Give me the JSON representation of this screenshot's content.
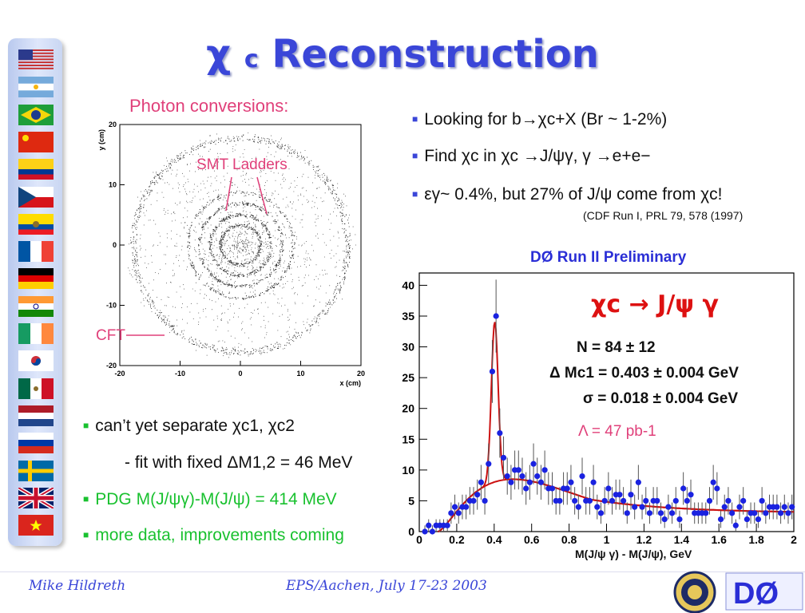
{
  "title": {
    "symbol": "χ",
    "sub": "c",
    "text": "Reconstruction"
  },
  "photon_label": "Photon conversions:",
  "annotations": {
    "smt": "SMT Ladders",
    "cft": "CFT"
  },
  "bullets_right": [
    "Looking for b→χc+X   (Br ~ 1-2%)",
    "Find χc in χc →J/ψγ,  γ →e+e−",
    "εγ~ 0.4%, but 27% of J/ψ come from χc!"
  ],
  "reference": "(CDF Run I, PRL 79, 578 (1997)",
  "bullets_left": {
    "b1": "can’t yet separate χc1, χc2",
    "b1_sub": "- fit with fixed ΔM1,2 = 46 MeV",
    "b2": "PDG M(J/ψγ)-M(J/ψ) = 414 MeV",
    "b3": "more data, improvements coming"
  },
  "footer": {
    "author": "Mike Hildreth",
    "conference": "EPS/Aachen, July 17-23 2003"
  },
  "flags": [
    "usa-flag",
    "argentina-flag",
    "brazil-flag",
    "china-flag",
    "colombia-flag",
    "czech-flag",
    "ecuador-flag",
    "france-flag",
    "germany-flag",
    "india-flag",
    "ireland-flag",
    "korea-flag",
    "mexico-flag",
    "netherlands-flag",
    "russia-flag",
    "sweden-flag",
    "uk-flag",
    "vietnam-flag"
  ],
  "colors": {
    "title_blue": "#3a46d8",
    "accent_pink": "#e0407a",
    "bullet_green": "#19c12f",
    "fit_red": "#cc1111",
    "point_blue": "#1a22e0"
  },
  "chart_data": [
    {
      "type": "scatter",
      "title": "",
      "xlabel": "x (cm)",
      "ylabel": "y (cm)",
      "xlim": [
        -20,
        20
      ],
      "ylim": [
        -20,
        20
      ],
      "xticks": [
        -20,
        -10,
        0,
        10,
        20
      ],
      "yticks": [
        -20,
        -10,
        0,
        10,
        20
      ],
      "description_regions": [
        "SMT Ladders",
        "CFT"
      ]
    },
    {
      "type": "scatter",
      "title": "DØ Run II Preliminary",
      "xlabel": "M(J/ψ γ) - M(J/ψ), GeV",
      "ylabel": "",
      "xlim": [
        0,
        2
      ],
      "ylim": [
        0,
        42
      ],
      "xticks": [
        0,
        0.2,
        0.4,
        0.6,
        0.8,
        1,
        1.2,
        1.4,
        1.6,
        1.8,
        2
      ],
      "yticks": [
        0,
        5,
        10,
        15,
        20,
        25,
        30,
        35,
        40
      ],
      "legend": {
        "process": "χc → J/ψ γ",
        "N": "N = 84 ± 12",
        "dM": "Δ Mc1 = 0.403 ± 0.004 GeV",
        "sigma": "σ = 0.018 ± 0.004 GeV",
        "lumi": "Λ = 47 pb-1"
      },
      "points": [
        [
          0.03,
          0
        ],
        [
          0.05,
          1
        ],
        [
          0.07,
          0
        ],
        [
          0.09,
          1
        ],
        [
          0.11,
          1
        ],
        [
          0.13,
          1
        ],
        [
          0.15,
          1
        ],
        [
          0.17,
          3
        ],
        [
          0.19,
          4
        ],
        [
          0.21,
          3
        ],
        [
          0.23,
          4
        ],
        [
          0.25,
          4
        ],
        [
          0.27,
          5
        ],
        [
          0.29,
          5
        ],
        [
          0.31,
          6
        ],
        [
          0.33,
          8
        ],
        [
          0.35,
          5
        ],
        [
          0.37,
          11
        ],
        [
          0.39,
          26
        ],
        [
          0.41,
          35
        ],
        [
          0.43,
          16
        ],
        [
          0.45,
          12
        ],
        [
          0.47,
          9
        ],
        [
          0.49,
          8
        ],
        [
          0.51,
          10
        ],
        [
          0.53,
          10
        ],
        [
          0.55,
          9
        ],
        [
          0.57,
          7
        ],
        [
          0.59,
          8
        ],
        [
          0.61,
          11
        ],
        [
          0.63,
          9
        ],
        [
          0.65,
          8
        ],
        [
          0.67,
          10
        ],
        [
          0.69,
          7
        ],
        [
          0.71,
          7
        ],
        [
          0.73,
          5
        ],
        [
          0.75,
          5
        ],
        [
          0.77,
          7
        ],
        [
          0.79,
          7
        ],
        [
          0.81,
          8
        ],
        [
          0.83,
          5
        ],
        [
          0.85,
          4
        ],
        [
          0.87,
          9
        ],
        [
          0.89,
          5
        ],
        [
          0.91,
          5
        ],
        [
          0.93,
          8
        ],
        [
          0.95,
          4
        ],
        [
          0.97,
          3
        ],
        [
          0.99,
          5
        ],
        [
          1.01,
          7
        ],
        [
          1.03,
          5
        ],
        [
          1.05,
          6
        ],
        [
          1.07,
          6
        ],
        [
          1.09,
          5
        ],
        [
          1.11,
          3
        ],
        [
          1.13,
          6
        ],
        [
          1.15,
          4
        ],
        [
          1.17,
          8
        ],
        [
          1.19,
          4
        ],
        [
          1.21,
          5
        ],
        [
          1.23,
          3
        ],
        [
          1.25,
          5
        ],
        [
          1.27,
          5
        ],
        [
          1.29,
          3
        ],
        [
          1.31,
          2
        ],
        [
          1.33,
          4
        ],
        [
          1.35,
          3
        ],
        [
          1.37,
          5
        ],
        [
          1.39,
          2
        ],
        [
          1.41,
          7
        ],
        [
          1.43,
          5
        ],
        [
          1.45,
          6
        ],
        [
          1.47,
          3
        ],
        [
          1.49,
          3
        ],
        [
          1.51,
          3
        ],
        [
          1.53,
          3
        ],
        [
          1.55,
          5
        ],
        [
          1.57,
          8
        ],
        [
          1.59,
          7
        ],
        [
          1.61,
          2
        ],
        [
          1.63,
          4
        ],
        [
          1.65,
          5
        ],
        [
          1.67,
          3
        ],
        [
          1.69,
          1
        ],
        [
          1.71,
          4
        ],
        [
          1.73,
          5
        ],
        [
          1.75,
          2
        ],
        [
          1.77,
          3
        ],
        [
          1.79,
          3
        ],
        [
          1.81,
          2
        ],
        [
          1.83,
          5
        ],
        [
          1.85,
          3
        ],
        [
          1.87,
          4
        ],
        [
          1.89,
          4
        ],
        [
          1.91,
          4
        ],
        [
          1.93,
          3
        ],
        [
          1.95,
          4
        ],
        [
          1.97,
          3
        ],
        [
          1.99,
          4
        ]
      ],
      "fit": {
        "signal_mean": 0.403,
        "signal_sigma": 0.018,
        "signal_peak": 26,
        "background_peak": 8.5
      }
    }
  ]
}
